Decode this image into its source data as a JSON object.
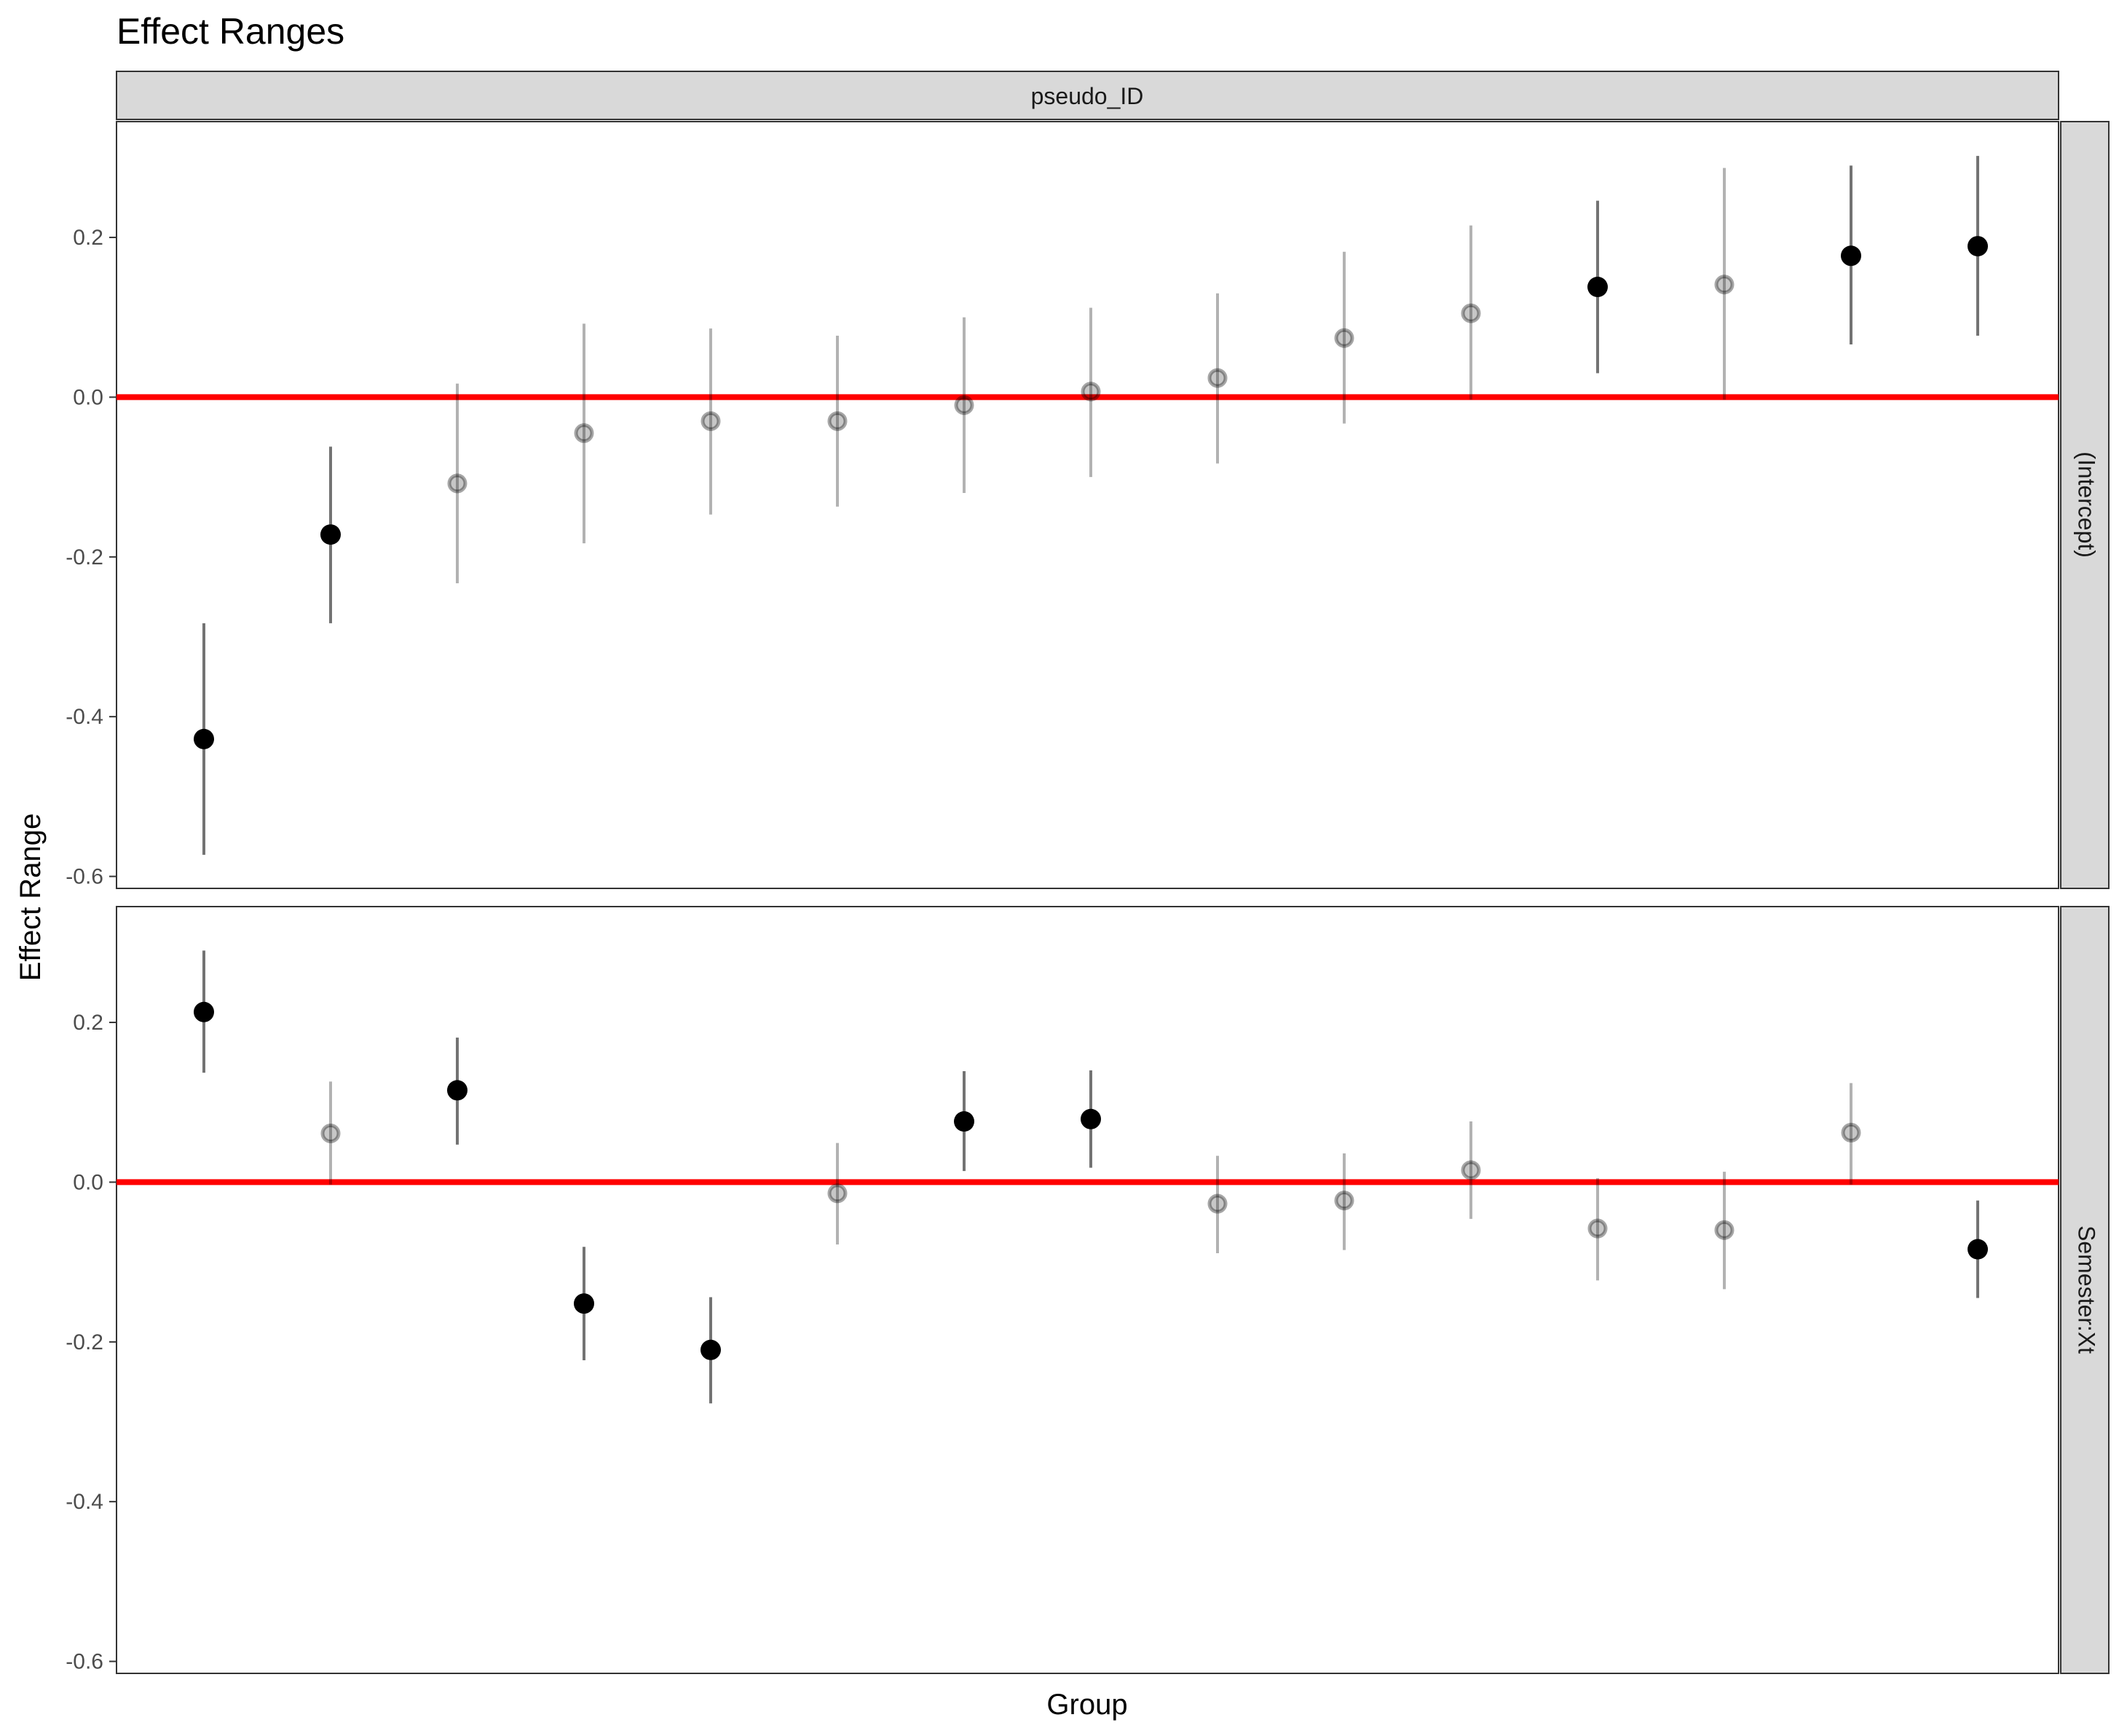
{
  "chart_data": {
    "type": "scatter",
    "title": "Effect Ranges",
    "xlabel": "Group",
    "ylabel": "Effect Range",
    "facet_top": "pseudo_ID",
    "ylim": [
      -0.615,
      0.345
    ],
    "yticks": [
      -0.6,
      -0.4,
      -0.2,
      0.0,
      0.2
    ],
    "ytick_labels": [
      "-0.6",
      "-0.4",
      "-0.2",
      "0.0",
      "0.2"
    ],
    "reference_line": {
      "y": 0.0,
      "color": "#ff0000"
    },
    "groups": 15,
    "x_tick_labels": "none",
    "panels": [
      {
        "label": "(Intercept)",
        "points": [
          {
            "x": 1,
            "y": -0.428,
            "lo": -0.573,
            "hi": -0.283,
            "significant": true
          },
          {
            "x": 2,
            "y": -0.172,
            "lo": -0.283,
            "hi": -0.062,
            "significant": true
          },
          {
            "x": 3,
            "y": -0.108,
            "lo": -0.233,
            "hi": 0.017,
            "significant": false
          },
          {
            "x": 4,
            "y": -0.045,
            "lo": -0.183,
            "hi": 0.092,
            "significant": false
          },
          {
            "x": 5,
            "y": -0.03,
            "lo": -0.147,
            "hi": 0.086,
            "significant": false
          },
          {
            "x": 6,
            "y": -0.03,
            "lo": -0.137,
            "hi": 0.077,
            "significant": false
          },
          {
            "x": 7,
            "y": -0.01,
            "lo": -0.12,
            "hi": 0.1,
            "significant": false
          },
          {
            "x": 8,
            "y": 0.007,
            "lo": -0.1,
            "hi": 0.112,
            "significant": false
          },
          {
            "x": 9,
            "y": 0.024,
            "lo": -0.083,
            "hi": 0.13,
            "significant": false
          },
          {
            "x": 10,
            "y": 0.074,
            "lo": -0.033,
            "hi": 0.182,
            "significant": false
          },
          {
            "x": 11,
            "y": 0.105,
            "lo": -0.003,
            "hi": 0.215,
            "significant": false
          },
          {
            "x": 12,
            "y": 0.138,
            "lo": 0.03,
            "hi": 0.246,
            "significant": true
          },
          {
            "x": 13,
            "y": 0.141,
            "lo": -0.003,
            "hi": 0.287,
            "significant": false
          },
          {
            "x": 14,
            "y": 0.177,
            "lo": 0.066,
            "hi": 0.29,
            "significant": true
          },
          {
            "x": 15,
            "y": 0.189,
            "lo": 0.077,
            "hi": 0.302,
            "significant": true
          }
        ]
      },
      {
        "label": "Semester:Xt",
        "points": [
          {
            "x": 1,
            "y": 0.213,
            "lo": 0.137,
            "hi": 0.29,
            "significant": true
          },
          {
            "x": 2,
            "y": 0.061,
            "lo": -0.003,
            "hi": 0.126,
            "significant": false
          },
          {
            "x": 3,
            "y": 0.115,
            "lo": 0.047,
            "hi": 0.181,
            "significant": true
          },
          {
            "x": 4,
            "y": -0.152,
            "lo": -0.223,
            "hi": -0.081,
            "significant": true
          },
          {
            "x": 5,
            "y": -0.21,
            "lo": -0.277,
            "hi": -0.144,
            "significant": true
          },
          {
            "x": 6,
            "y": -0.014,
            "lo": -0.078,
            "hi": 0.049,
            "significant": false
          },
          {
            "x": 7,
            "y": 0.076,
            "lo": 0.014,
            "hi": 0.139,
            "significant": true
          },
          {
            "x": 8,
            "y": 0.079,
            "lo": 0.018,
            "hi": 0.14,
            "significant": true
          },
          {
            "x": 9,
            "y": -0.027,
            "lo": -0.089,
            "hi": 0.033,
            "significant": false
          },
          {
            "x": 10,
            "y": -0.023,
            "lo": -0.085,
            "hi": 0.036,
            "significant": false
          },
          {
            "x": 11,
            "y": 0.015,
            "lo": -0.046,
            "hi": 0.076,
            "significant": false
          },
          {
            "x": 12,
            "y": -0.058,
            "lo": -0.123,
            "hi": 0.005,
            "significant": false
          },
          {
            "x": 13,
            "y": -0.06,
            "lo": -0.134,
            "hi": 0.013,
            "significant": false
          },
          {
            "x": 14,
            "y": 0.062,
            "lo": -0.003,
            "hi": 0.124,
            "significant": false
          },
          {
            "x": 15,
            "y": -0.084,
            "lo": -0.145,
            "hi": -0.023,
            "significant": true
          }
        ]
      }
    ],
    "colors": {
      "significant_point": "#000000",
      "nonsignificant_point": "#8c8c8c",
      "strip_fill": "#d9d9d9",
      "panel_border": "#333333",
      "zero_line": "#ff0000"
    }
  }
}
